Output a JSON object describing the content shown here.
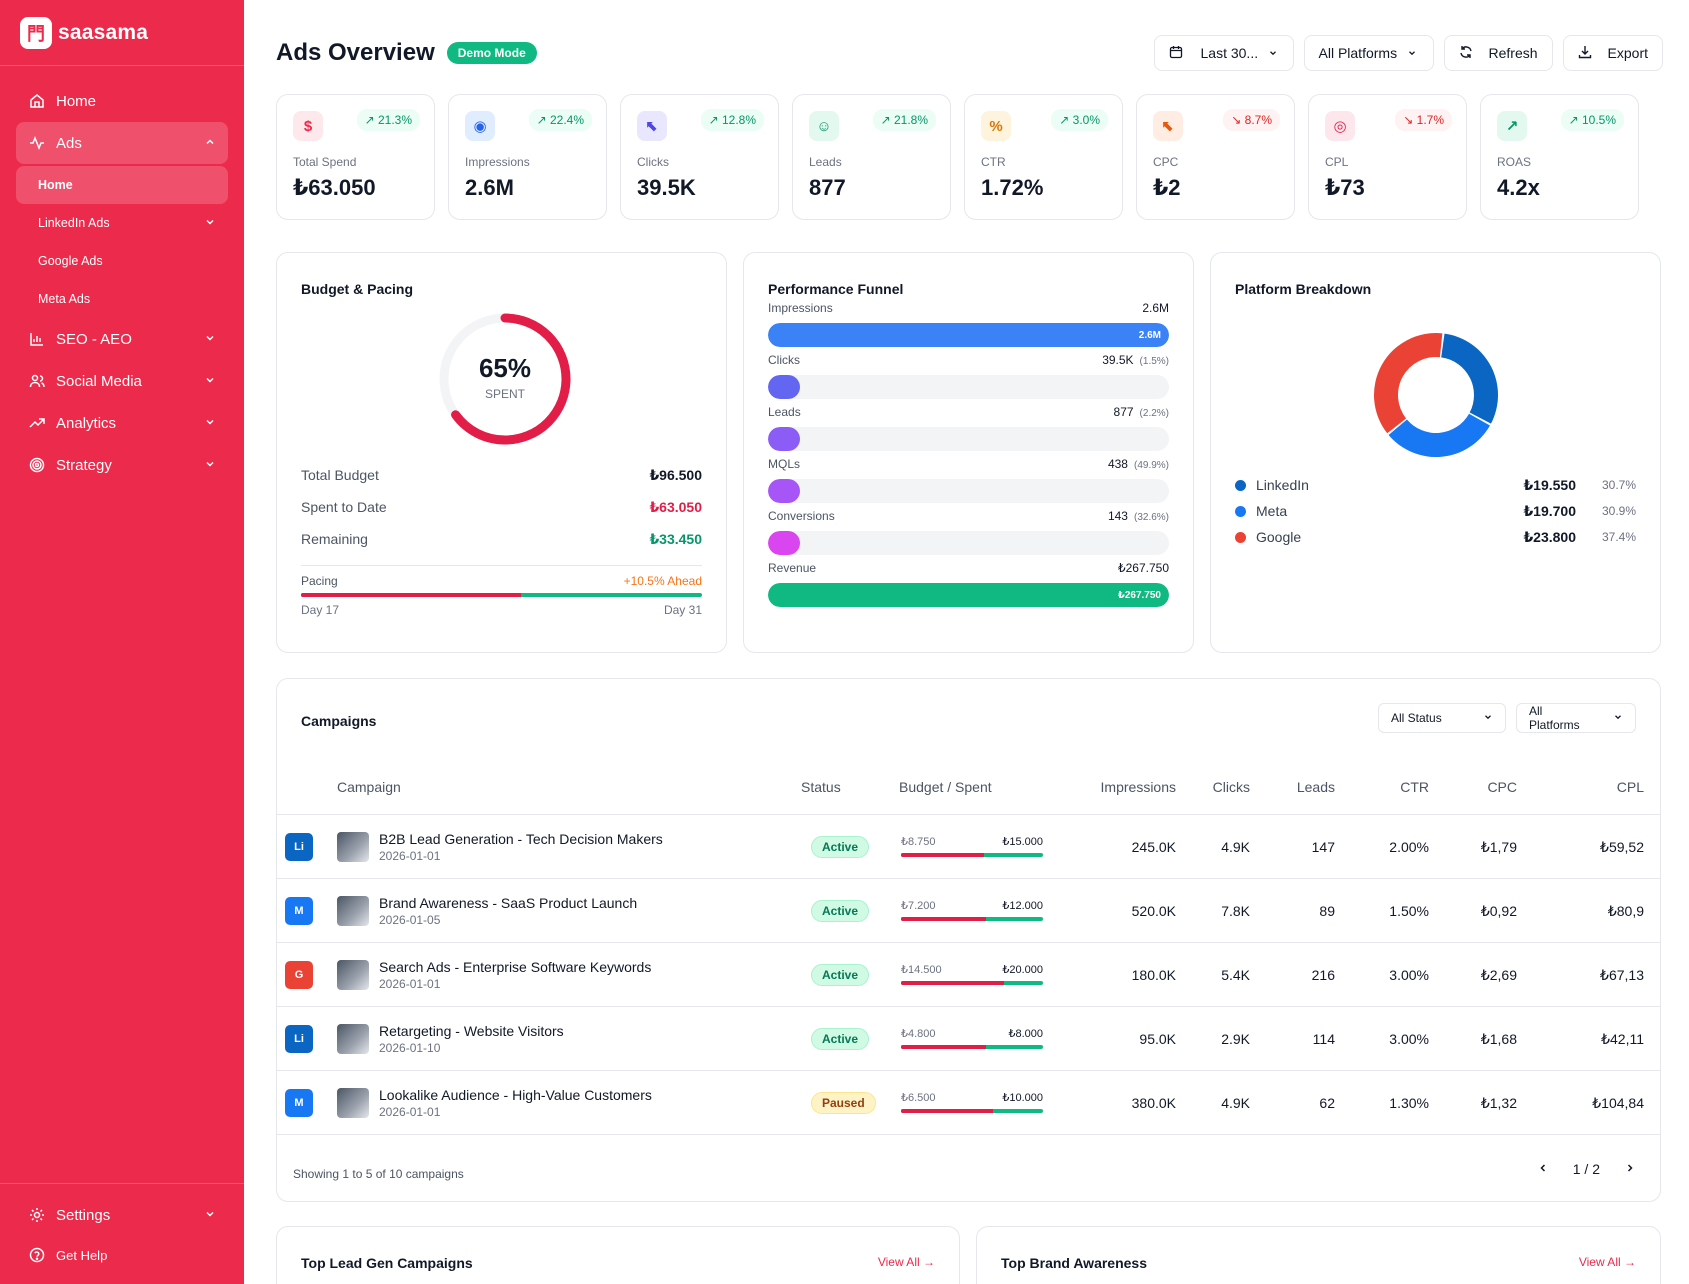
{
  "app": {
    "logo_mark": "門",
    "logo_text": "saasama"
  },
  "sidebar": {
    "home": "Home",
    "ads": "Ads",
    "ads_sub": [
      {
        "label": "Home",
        "active": true,
        "chevron": false
      },
      {
        "label": "LinkedIn Ads",
        "active": false,
        "chevron": true
      },
      {
        "label": "Google Ads",
        "active": false,
        "chevron": false
      },
      {
        "label": "Meta Ads",
        "active": false,
        "chevron": false
      }
    ],
    "seo": "SEO - AEO",
    "social": "Social Media",
    "analytics": "Analytics",
    "strategy": "Strategy",
    "settings": "Settings",
    "help": "Get Help"
  },
  "header": {
    "title": "Ads Overview",
    "badge": "Demo Mode",
    "date_range": "Last 30...",
    "platform": "All Platforms",
    "refresh": "Refresh",
    "export": "Export"
  },
  "kpis": [
    {
      "label": "Total Spend",
      "value": "₺63.050",
      "delta": "21.3%",
      "trend": "up",
      "icon": "$",
      "icon_name": "dollar-icon",
      "icon_color": "#ec2a4b",
      "icon_bg": "#fde8ec"
    },
    {
      "label": "Impressions",
      "value": "2.6M",
      "delta": "22.4%",
      "trend": "up",
      "icon": "◉",
      "icon_name": "eye-icon",
      "icon_color": "#2563eb",
      "icon_bg": "#e0ecff"
    },
    {
      "label": "Clicks",
      "value": "39.5K",
      "delta": "12.8%",
      "trend": "up",
      "icon": "⬉",
      "icon_name": "cursor-icon",
      "icon_color": "#4f46e5",
      "icon_bg": "#e8e7fd"
    },
    {
      "label": "Leads",
      "value": "877",
      "delta": "21.8%",
      "trend": "up",
      "icon": "☺",
      "icon_name": "users-icon",
      "icon_color": "#059669",
      "icon_bg": "#e3f8ee"
    },
    {
      "label": "CTR",
      "value": "1.72%",
      "delta": "3.0%",
      "trend": "up",
      "icon": "%",
      "icon_name": "percent-icon",
      "icon_color": "#d97706",
      "icon_bg": "#fef3dc"
    },
    {
      "label": "CPC",
      "value": "₺2",
      "delta": "8.7%",
      "trend": "down",
      "icon": "⬉",
      "icon_name": "pointer-icon",
      "icon_color": "#ea580c",
      "icon_bg": "#ffede3"
    },
    {
      "label": "CPL",
      "value": "₺73",
      "delta": "1.7%",
      "trend": "down",
      "icon": "◎",
      "icon_name": "target-icon",
      "icon_color": "#e11d48",
      "icon_bg": "#fde7ec"
    },
    {
      "label": "ROAS",
      "value": "4.2x",
      "delta": "10.5%",
      "trend": "up",
      "icon": "↗",
      "icon_name": "arrow-up-right-icon",
      "icon_color": "#059669",
      "icon_bg": "#e3f8ee"
    }
  ],
  "budget": {
    "title": "Budget & Pacing",
    "percent_spent": 65,
    "percent_label": "65%",
    "spent_label": "SPENT",
    "total_label": "Total Budget",
    "total_value": "₺96.500",
    "spent_to_date_label": "Spent to Date",
    "spent_to_date_value": "₺63.050",
    "remaining_label": "Remaining",
    "remaining_value": "₺33.450",
    "pacing_label": "Pacing",
    "pacing_value": "+10.5% Ahead",
    "pacing_progress": 0.548,
    "day_current": "Day 17",
    "day_end": "Day 31"
  },
  "funnel": {
    "title": "Performance Funnel",
    "stages": [
      {
        "label": "Impressions",
        "value": "2.6M",
        "pct": "",
        "bar_label": "2.6M",
        "fill": 1.0,
        "color": "#3b82f6"
      },
      {
        "label": "Clicks",
        "value": "39.5K",
        "pct": "(1.5%)",
        "bar_label": "",
        "fill": 0.08,
        "color": "#6366f1"
      },
      {
        "label": "Leads",
        "value": "877",
        "pct": "(2.2%)",
        "bar_label": "",
        "fill": 0.08,
        "color": "#8b5cf6"
      },
      {
        "label": "MQLs",
        "value": "438",
        "pct": "(49.9%)",
        "bar_label": "",
        "fill": 0.08,
        "color": "#a855f7"
      },
      {
        "label": "Conversions",
        "value": "143",
        "pct": "(32.6%)",
        "bar_label": "",
        "fill": 0.08,
        "color": "#d946ef"
      },
      {
        "label": "Revenue",
        "value": "₺267.750",
        "pct": "",
        "bar_label": "₺267.750",
        "fill": 1.0,
        "color": "#10b981"
      }
    ]
  },
  "platform_breakdown": {
    "title": "Platform Breakdown",
    "items": [
      {
        "name": "LinkedIn",
        "value": "₺19.550",
        "pct": "30.7%",
        "share": 30.7,
        "color": "#0a66c2"
      },
      {
        "name": "Meta",
        "value": "₺19.700",
        "pct": "30.9%",
        "share": 30.9,
        "color": "#1877f2"
      },
      {
        "name": "Google",
        "value": "₺23.800",
        "pct": "37.4%",
        "share": 37.4,
        "color": "#ea4335"
      }
    ]
  },
  "campaigns": {
    "title": "Campaigns",
    "filter_status": "All Status",
    "filter_platform": "All Platforms",
    "columns": {
      "campaign": "Campaign",
      "status": "Status",
      "budget": "Budget / Spent",
      "impressions": "Impressions",
      "clicks": "Clicks",
      "leads": "Leads",
      "ctr": "CTR",
      "cpc": "CPC",
      "cpl": "CPL"
    },
    "rows": [
      {
        "platform": "Li",
        "pcolor": "#0a66c2",
        "name": "B2B Lead Generation - Tech Decision Makers",
        "date": "2026-01-01",
        "status": "Active",
        "spent": "₺8.750",
        "budget": "₺15.000",
        "progress": 0.583,
        "impressions": "245.0K",
        "clicks": "4.9K",
        "leads": "147",
        "ctr": "2.00%",
        "cpc": "₺1,79",
        "cpl": "₺59,52"
      },
      {
        "platform": "M",
        "pcolor": "#1877f2",
        "name": "Brand Awareness - SaaS Product Launch",
        "date": "2026-01-05",
        "status": "Active",
        "spent": "₺7.200",
        "budget": "₺12.000",
        "progress": 0.6,
        "impressions": "520.0K",
        "clicks": "7.8K",
        "leads": "89",
        "ctr": "1.50%",
        "cpc": "₺0,92",
        "cpl": "₺80,9"
      },
      {
        "platform": "G",
        "pcolor": "#ea4335",
        "name": "Search Ads - Enterprise Software Keywords",
        "date": "2026-01-01",
        "status": "Active",
        "spent": "₺14.500",
        "budget": "₺20.000",
        "progress": 0.725,
        "impressions": "180.0K",
        "clicks": "5.4K",
        "leads": "216",
        "ctr": "3.00%",
        "cpc": "₺2,69",
        "cpl": "₺67,13"
      },
      {
        "platform": "Li",
        "pcolor": "#0a66c2",
        "name": "Retargeting - Website Visitors",
        "date": "2026-01-10",
        "status": "Active",
        "spent": "₺4.800",
        "budget": "₺8.000",
        "progress": 0.6,
        "impressions": "95.0K",
        "clicks": "2.9K",
        "leads": "114",
        "ctr": "3.00%",
        "cpc": "₺1,68",
        "cpl": "₺42,11"
      },
      {
        "platform": "M",
        "pcolor": "#1877f2",
        "name": "Lookalike Audience - High-Value Customers",
        "date": "2026-01-01",
        "status": "Paused",
        "spent": "₺6.500",
        "budget": "₺10.000",
        "progress": 0.65,
        "impressions": "380.0K",
        "clicks": "4.9K",
        "leads": "62",
        "ctr": "1.30%",
        "cpc": "₺1,32",
        "cpl": "₺104,84"
      }
    ],
    "footer_text": "Showing 1 to 5 of 10 campaigns",
    "page": "1 / 2"
  },
  "bottom_cards": {
    "lead_gen_title": "Top Lead Gen Campaigns",
    "brand_title": "Top Brand Awareness",
    "view_all": "View All"
  },
  "colors": {
    "brand": "#ec2a4b",
    "success": "#10b981",
    "danger": "#e11d48",
    "warning": "#f97316"
  }
}
